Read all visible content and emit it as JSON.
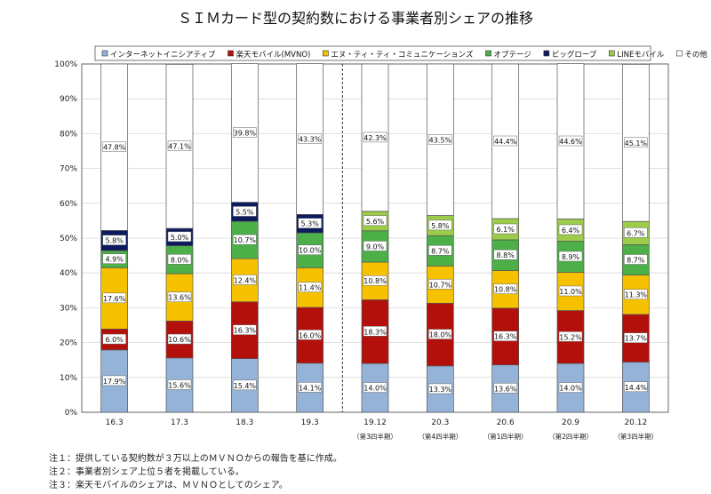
{
  "chart_data": {
    "type": "bar",
    "stacked": true,
    "title": "ＳＩＭカード型の契約数における事業者別シェアの推移",
    "categories": [
      "16.3",
      "17.3",
      "18.3",
      "19.3",
      "19.12",
      "20.3",
      "20.6",
      "20.9",
      "20.12"
    ],
    "sublabels": [
      "",
      "",
      "",
      "",
      "（第3四半期）",
      "（第4四半期）",
      "（第1四半期）",
      "（第2四半期）",
      "（第3四半期）"
    ],
    "series": [
      {
        "name": "インターネットイニシアティブ",
        "color": "#95b3d7",
        "values": [
          17.9,
          15.6,
          15.4,
          14.1,
          14.0,
          13.3,
          13.6,
          14.0,
          14.4
        ]
      },
      {
        "name": "楽天モバイル(MVNO)",
        "color": "#b30f0b",
        "values": [
          6.0,
          10.6,
          16.3,
          16.0,
          18.3,
          18.0,
          16.3,
          15.2,
          13.7
        ]
      },
      {
        "name": "エヌ・ティ・ティ・コミュニケーションズ",
        "color": "#f6c200",
        "values": [
          17.6,
          13.6,
          12.4,
          11.4,
          10.8,
          10.7,
          10.8,
          11.0,
          11.3
        ]
      },
      {
        "name": "オプテージ",
        "color": "#4caf48",
        "values": [
          4.9,
          8.0,
          10.7,
          10.0,
          9.0,
          8.7,
          8.8,
          8.9,
          8.7
        ]
      },
      {
        "name": "ビッグローブ",
        "color": "#0d1b5e",
        "values": [
          5.8,
          5.0,
          5.5,
          5.3,
          null,
          null,
          null,
          null,
          null
        ]
      },
      {
        "name": "LINEモバイル",
        "color": "#9ccc4a",
        "values": [
          null,
          null,
          null,
          null,
          5.6,
          5.8,
          6.1,
          6.4,
          6.7
        ]
      },
      {
        "name": "その他",
        "color": "#ffffff",
        "values": [
          47.8,
          47.1,
          39.8,
          43.3,
          42.3,
          43.5,
          44.4,
          44.6,
          45.1
        ]
      }
    ],
    "ylim": [
      0,
      100
    ],
    "yticks": [
      "0%",
      "10%",
      "20%",
      "30%",
      "40%",
      "50%",
      "60%",
      "70%",
      "80%",
      "90%",
      "100%"
    ],
    "grid": true,
    "legend_placement": "top",
    "separator_after_category": "19.3"
  },
  "notes": [
    "注１：提供している契約数が３万以上のＭＶＮＯからの報告を基に作成。",
    "注２：事業者別シェア上位５者を掲載している。",
    "注３：楽天モバイルのシェアは、ＭＶＮＯとしてのシェア。"
  ]
}
